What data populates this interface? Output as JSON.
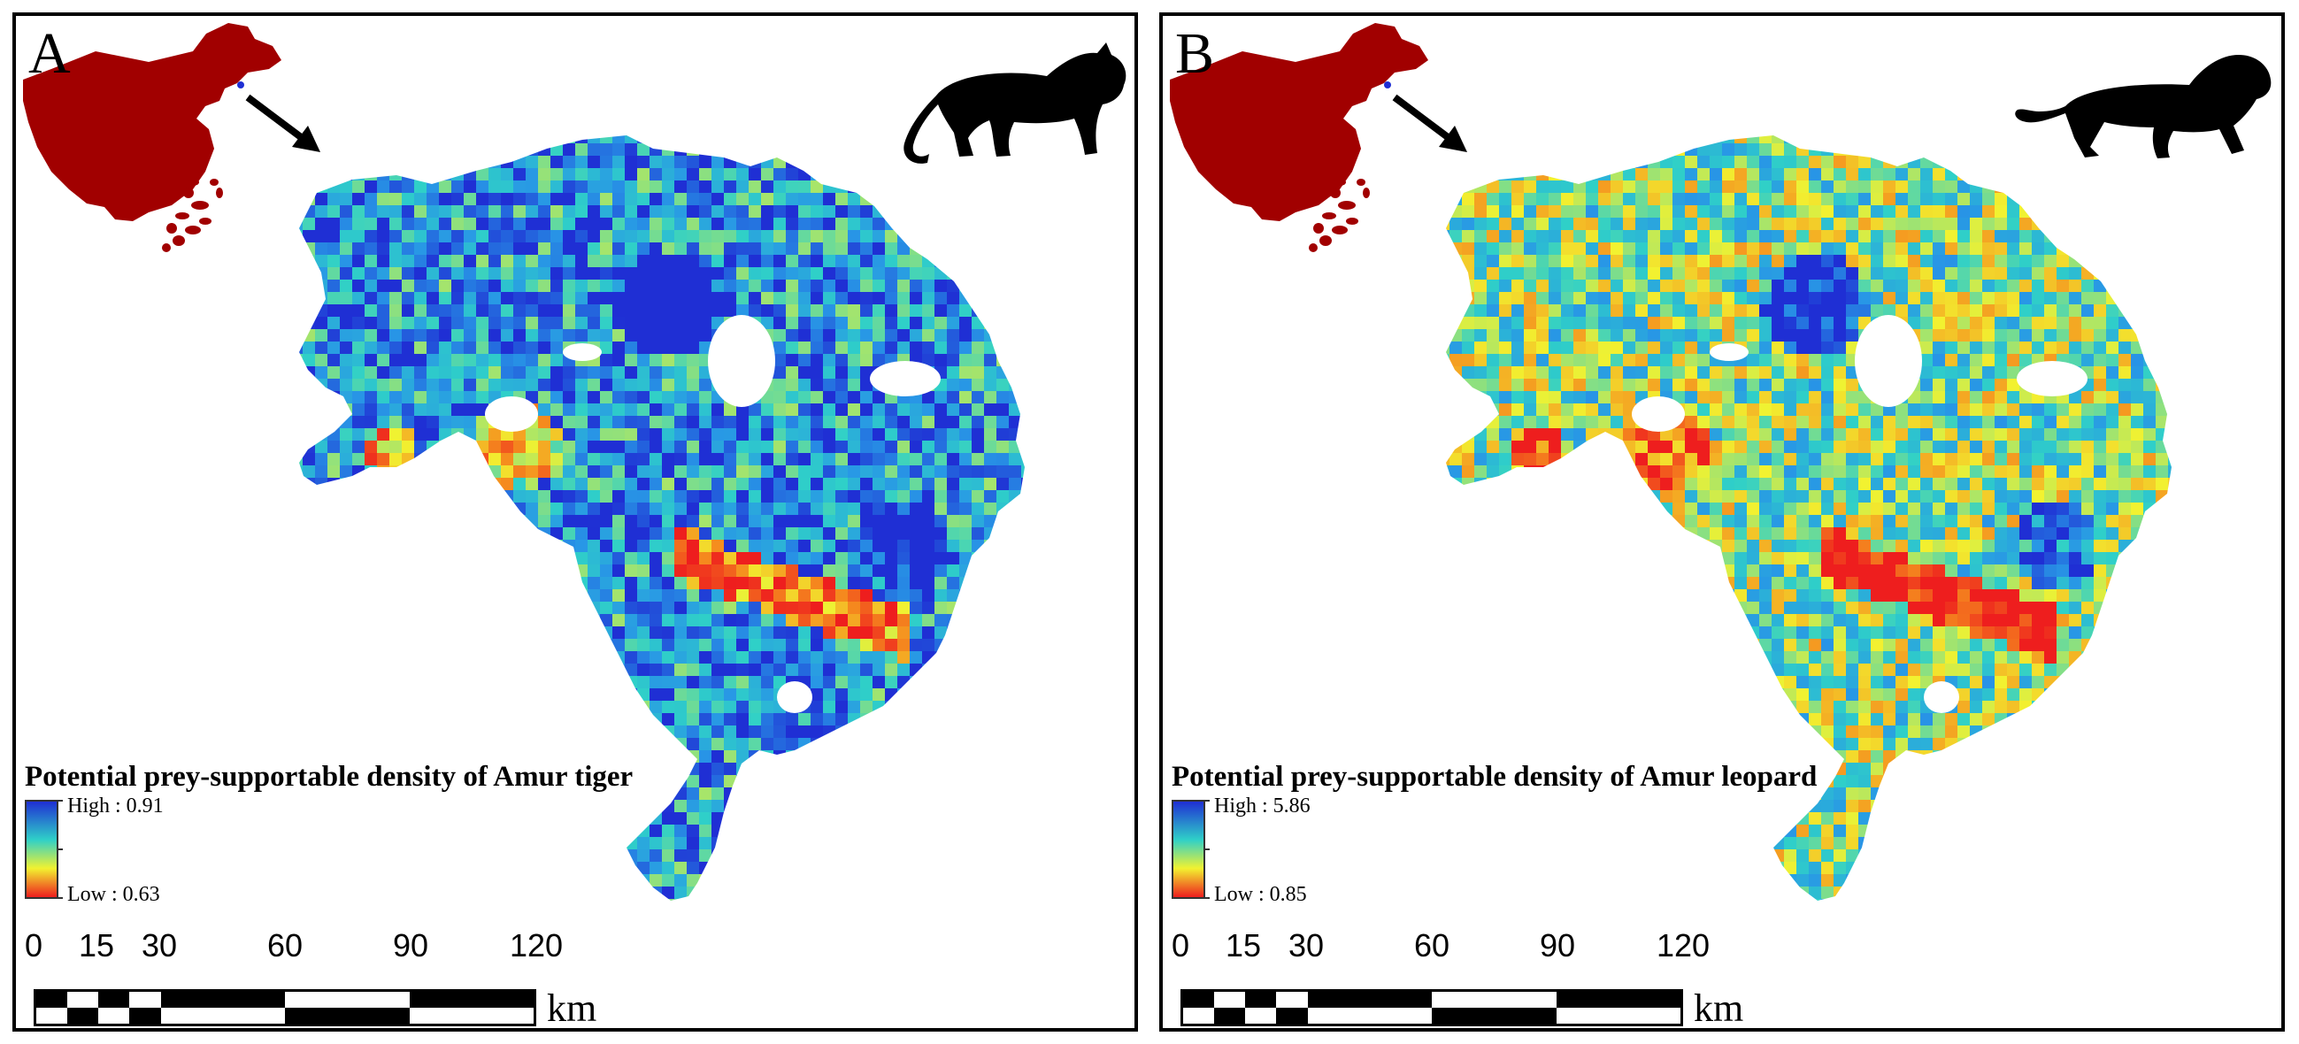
{
  "colors": {
    "china_fill": "#a10000",
    "ramp_high": "#1f2fd4",
    "ramp_mid": "#2fd0c8",
    "ramp_yellow": "#f2f230",
    "ramp_low": "#ee1e1e",
    "arrow": "#000000",
    "silhouette": "#000000"
  },
  "panels": [
    {
      "letter": "A",
      "legend_title": "Potential prey-supportable density of Amur tiger",
      "high_label": "High : 0.91",
      "low_label": "Low : 0.63",
      "animal_icon": "tiger-silhouette-icon",
      "bias": 0.45
    },
    {
      "letter": "B",
      "legend_title": "Potential prey-supportable density of Amur leopard",
      "high_label": "High : 5.86",
      "low_label": "Low : 0.85",
      "animal_icon": "leopard-silhouette-icon",
      "bias": 0.2
    }
  ],
  "scalebar": {
    "labels": [
      "0",
      "15",
      "30",
      "60",
      "90",
      "120"
    ],
    "unit": "km"
  }
}
